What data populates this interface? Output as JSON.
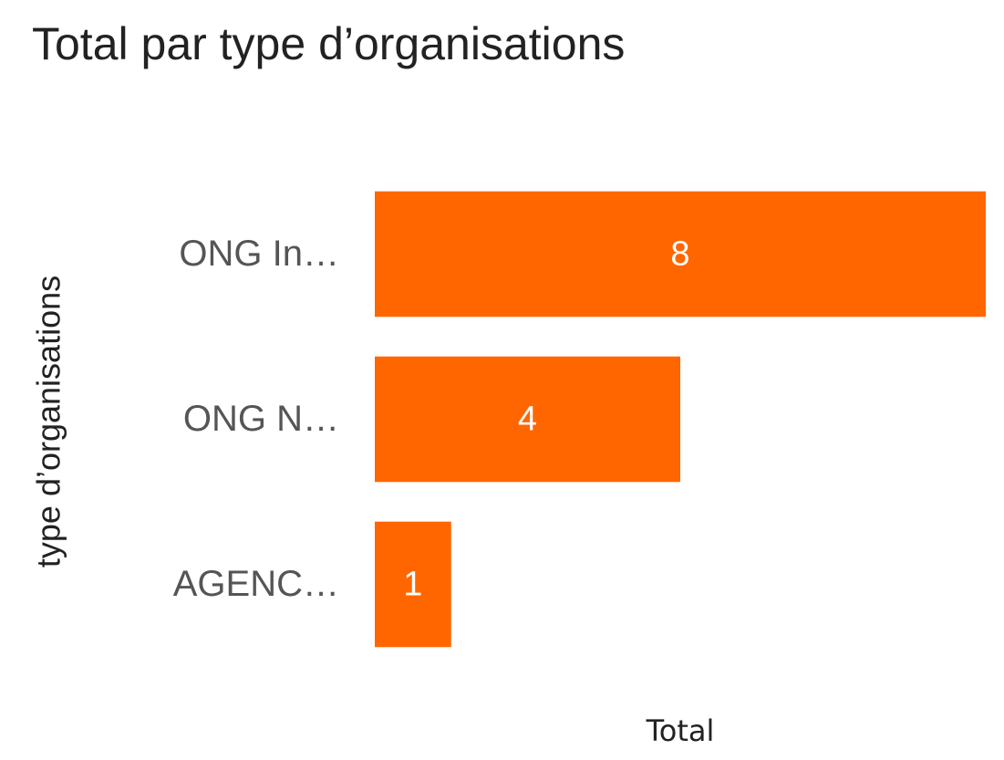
{
  "chart_data": {
    "type": "bar",
    "orientation": "horizontal",
    "title": "Total par type d’organisations",
    "x_label": "Total",
    "y_label": "type d’organisations",
    "categories": [
      "ONG In…",
      "ONG N…",
      "AGENC…"
    ],
    "values": [
      8,
      4,
      1
    ],
    "color": "#ff6600",
    "xlim": [
      0,
      8
    ]
  }
}
